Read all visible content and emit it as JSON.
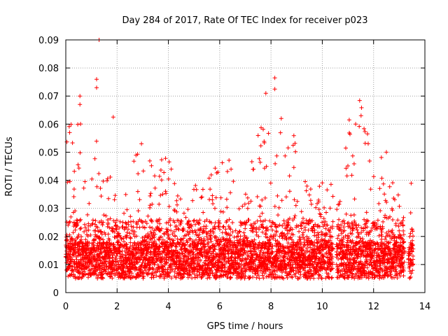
{
  "chart_data": {
    "type": "scatter",
    "title": "Day 284 of 2017, Rate Of TEC Index for receiver p023",
    "xlabel": "GPS time / hours",
    "ylabel": "ROTI / TECUs",
    "xlim": [
      0,
      14
    ],
    "ylim": [
      0,
      0.09
    ],
    "x_ticks": [
      0,
      2,
      4,
      6,
      8,
      10,
      12,
      14
    ],
    "x_tick_labels": [
      "0",
      "2",
      "4",
      "6",
      "8",
      "10",
      "12",
      "14"
    ],
    "y_ticks": [
      0,
      0.01,
      0.02,
      0.03,
      0.04,
      0.05,
      0.06,
      0.07,
      0.08,
      0.09
    ],
    "y_tick_labels": [
      "0",
      "0.01",
      "0.02",
      "0.03",
      "0.04",
      "0.05",
      "0.06",
      "0.07",
      "0.08",
      "0.09"
    ],
    "grid": true,
    "marker": "+",
    "colors": {
      "points": "#ff0000",
      "grid": "#a0a0a0",
      "axes": "#000000"
    },
    "series": [
      {
        "name": "ROTI",
        "points_summary": "dense red '+' scatter, mostly 0.005-0.03 TECU, time range 0-13.6 h",
        "notable_points": [
          {
            "x": 1.3,
            "y": 0.09
          },
          {
            "x": 1.2,
            "y": 0.076
          },
          {
            "x": 1.2,
            "y": 0.073
          },
          {
            "x": 0.55,
            "y": 0.07
          },
          {
            "x": 0.55,
            "y": 0.067
          },
          {
            "x": 1.85,
            "y": 0.0625
          },
          {
            "x": 8.15,
            "y": 0.0765
          },
          {
            "x": 8.15,
            "y": 0.0725
          },
          {
            "x": 7.8,
            "y": 0.071
          },
          {
            "x": 8.4,
            "y": 0.062
          },
          {
            "x": 11.05,
            "y": 0.0615
          },
          {
            "x": 11.3,
            "y": 0.06
          },
          {
            "x": 0.15,
            "y": 0.057
          },
          {
            "x": 2.95,
            "y": 0.053
          },
          {
            "x": 12.5,
            "y": 0.05
          }
        ]
      }
    ]
  }
}
